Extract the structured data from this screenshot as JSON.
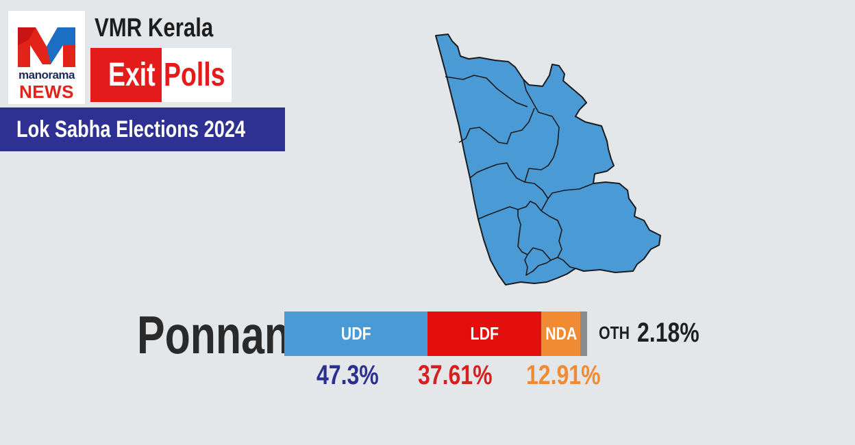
{
  "logo": {
    "line1": "manorama",
    "line2": "NEWS",
    "colors": {
      "red": "#e2231a",
      "blue": "#1b6fc2",
      "navy": "#1b2a5c"
    }
  },
  "header": {
    "source": "VMR Kerala",
    "exit_word": "Exit",
    "polls_word": "Polls",
    "election": "Lok Sabha Elections 2024"
  },
  "result": {
    "constituency": "Ponnani",
    "parties": [
      {
        "name": "UDF",
        "percent_label": "47.3%",
        "value": 47.3,
        "color": "#4a9ad6",
        "text_color": "#2b2f8f"
      },
      {
        "name": "LDF",
        "percent_label": "37.61%",
        "value": 37.61,
        "color": "#e30f0f",
        "text_color": "#d71f1f"
      },
      {
        "name": "NDA",
        "percent_label": "12.91%",
        "value": 12.91,
        "color": "#f08a33",
        "text_color": "#f08a33"
      },
      {
        "name": "OTH",
        "percent_label": "2.18%",
        "value": 2.18,
        "color": "#8c8c8c",
        "text_color": "#1f1f1f"
      }
    ]
  },
  "map": {
    "fill": "#4a9ad6",
    "stroke": "#1a1a1a",
    "icon": "constituency-map"
  }
}
